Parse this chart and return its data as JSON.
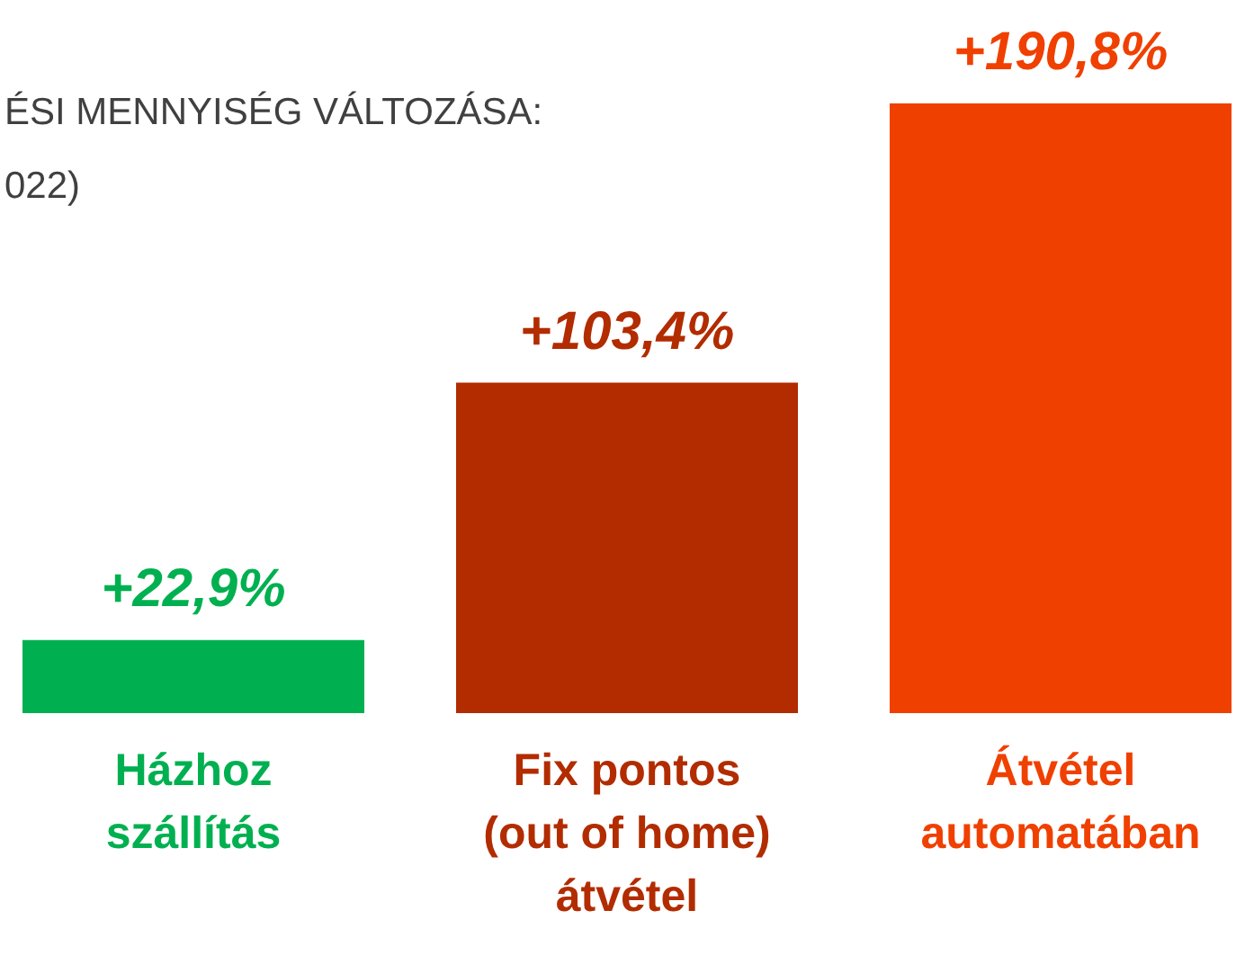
{
  "chart_data": {
    "type": "bar",
    "title": "ÉSI MENNYISÉG VÁLTOZÁSA:",
    "subtitle": "022)",
    "categories": [
      "Házhoz\nszállítás",
      "Fix pontos\n(out of home)\nátvétel",
      "Átvétel\nautomatában"
    ],
    "values": [
      22.9,
      103.4,
      190.8
    ],
    "colors": [
      "#00b050",
      "#b22c00",
      "#f04000"
    ],
    "value_labels": [
      "+22,9%",
      "+103,4%",
      "+190,8%"
    ]
  }
}
